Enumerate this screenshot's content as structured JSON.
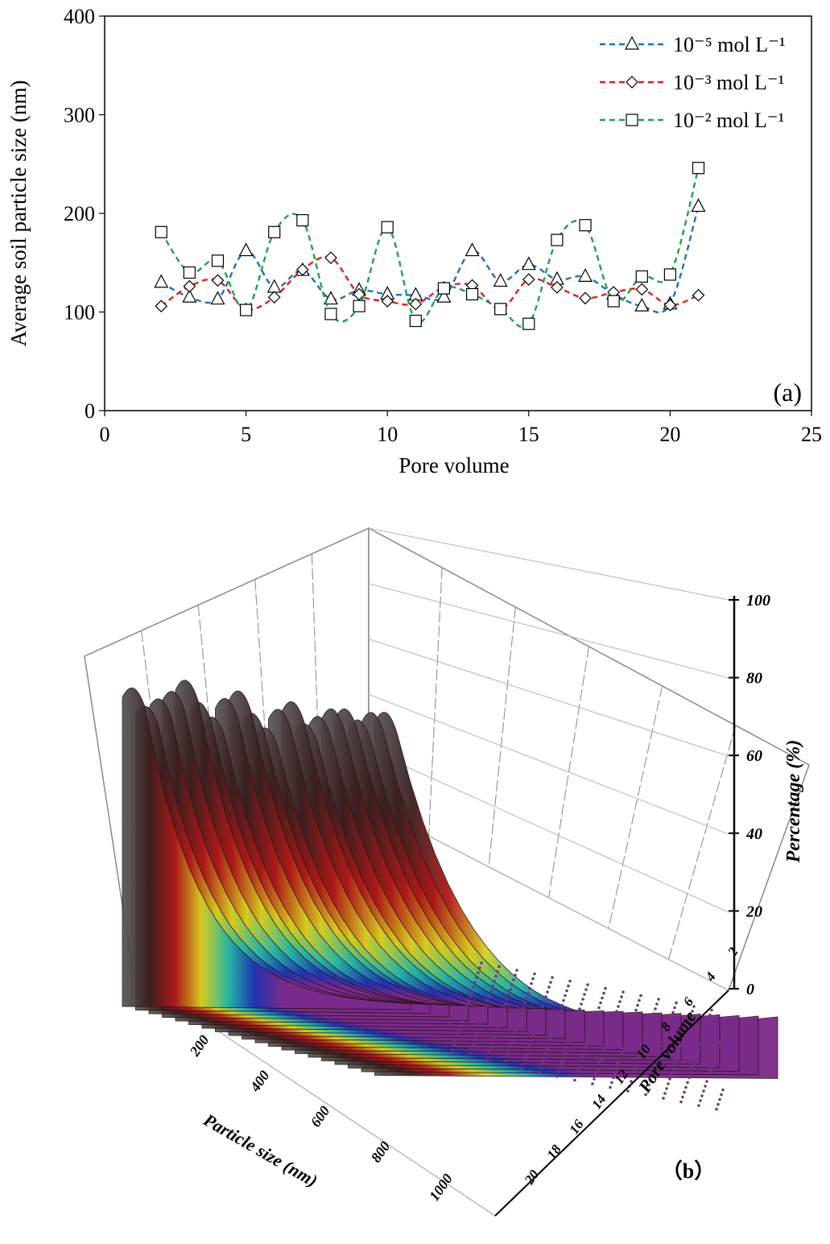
{
  "chart_data": [
    {
      "type": "line",
      "panel_label": "(a)",
      "xlabel": "Pore volume",
      "ylabel": "Average soil particle size  (nm)",
      "xlim": [
        0,
        25
      ],
      "ylim": [
        0,
        400
      ],
      "xticks": [
        "0",
        "5",
        "10",
        "15",
        "20",
        "25"
      ],
      "yticks": [
        "0",
        "100",
        "200",
        "300",
        "400"
      ],
      "legend_position": "top-right",
      "x": [
        2,
        3,
        4,
        5,
        6,
        7,
        8,
        9,
        10,
        11,
        12,
        13,
        14,
        15,
        16,
        17,
        18,
        19,
        20,
        21
      ],
      "series": [
        {
          "name": "10⁻⁵ mol L⁻¹",
          "marker": "triangle",
          "color": "#1f6fbf",
          "values": [
            130,
            115,
            113,
            162,
            125,
            142,
            113,
            122,
            118,
            117,
            115,
            162,
            131,
            148,
            133,
            136,
            118,
            106,
            108,
            207
          ]
        },
        {
          "name": "10⁻³ mol L⁻¹",
          "marker": "diamond",
          "color": "#e02020",
          "values": [
            106,
            126,
            132,
            103,
            115,
            143,
            155,
            118,
            111,
            108,
            125,
            127,
            103,
            133,
            125,
            114,
            120,
            123,
            107,
            117
          ]
        },
        {
          "name": "10⁻² mol L⁻¹",
          "marker": "square",
          "color": "#1fa34a",
          "values": [
            181,
            140,
            152,
            102,
            181,
            193,
            98,
            106,
            186,
            91,
            124,
            118,
            103,
            88,
            173,
            188,
            111,
            136,
            138,
            246
          ]
        }
      ]
    },
    {
      "type": "surface-3d",
      "panel_label": "（b）",
      "xlabel": "Particle size (nm)",
      "ylabel": "Pore volume",
      "zlabel": "Percentage (%)",
      "xticks": [
        "200",
        "400",
        "600",
        "800",
        "1000"
      ],
      "yticks": [
        "2",
        "4",
        "6",
        "8",
        "10",
        "12",
        "14",
        "16",
        "18",
        "20"
      ],
      "zticks": [
        "0",
        "20",
        "40",
        "60",
        "80",
        "100"
      ],
      "peak_heights": [
        86,
        82,
        85,
        88,
        92,
        87,
        84,
        90,
        93,
        88,
        85,
        91,
        94,
        89,
        92,
        95,
        96,
        94,
        97,
        98
      ],
      "color_bands": [
        "#5a5a5a",
        "#3a1e1e",
        "#b01818",
        "#d8d020",
        "#21b5a8",
        "#2030b0",
        "#7a2a8a"
      ]
    }
  ]
}
